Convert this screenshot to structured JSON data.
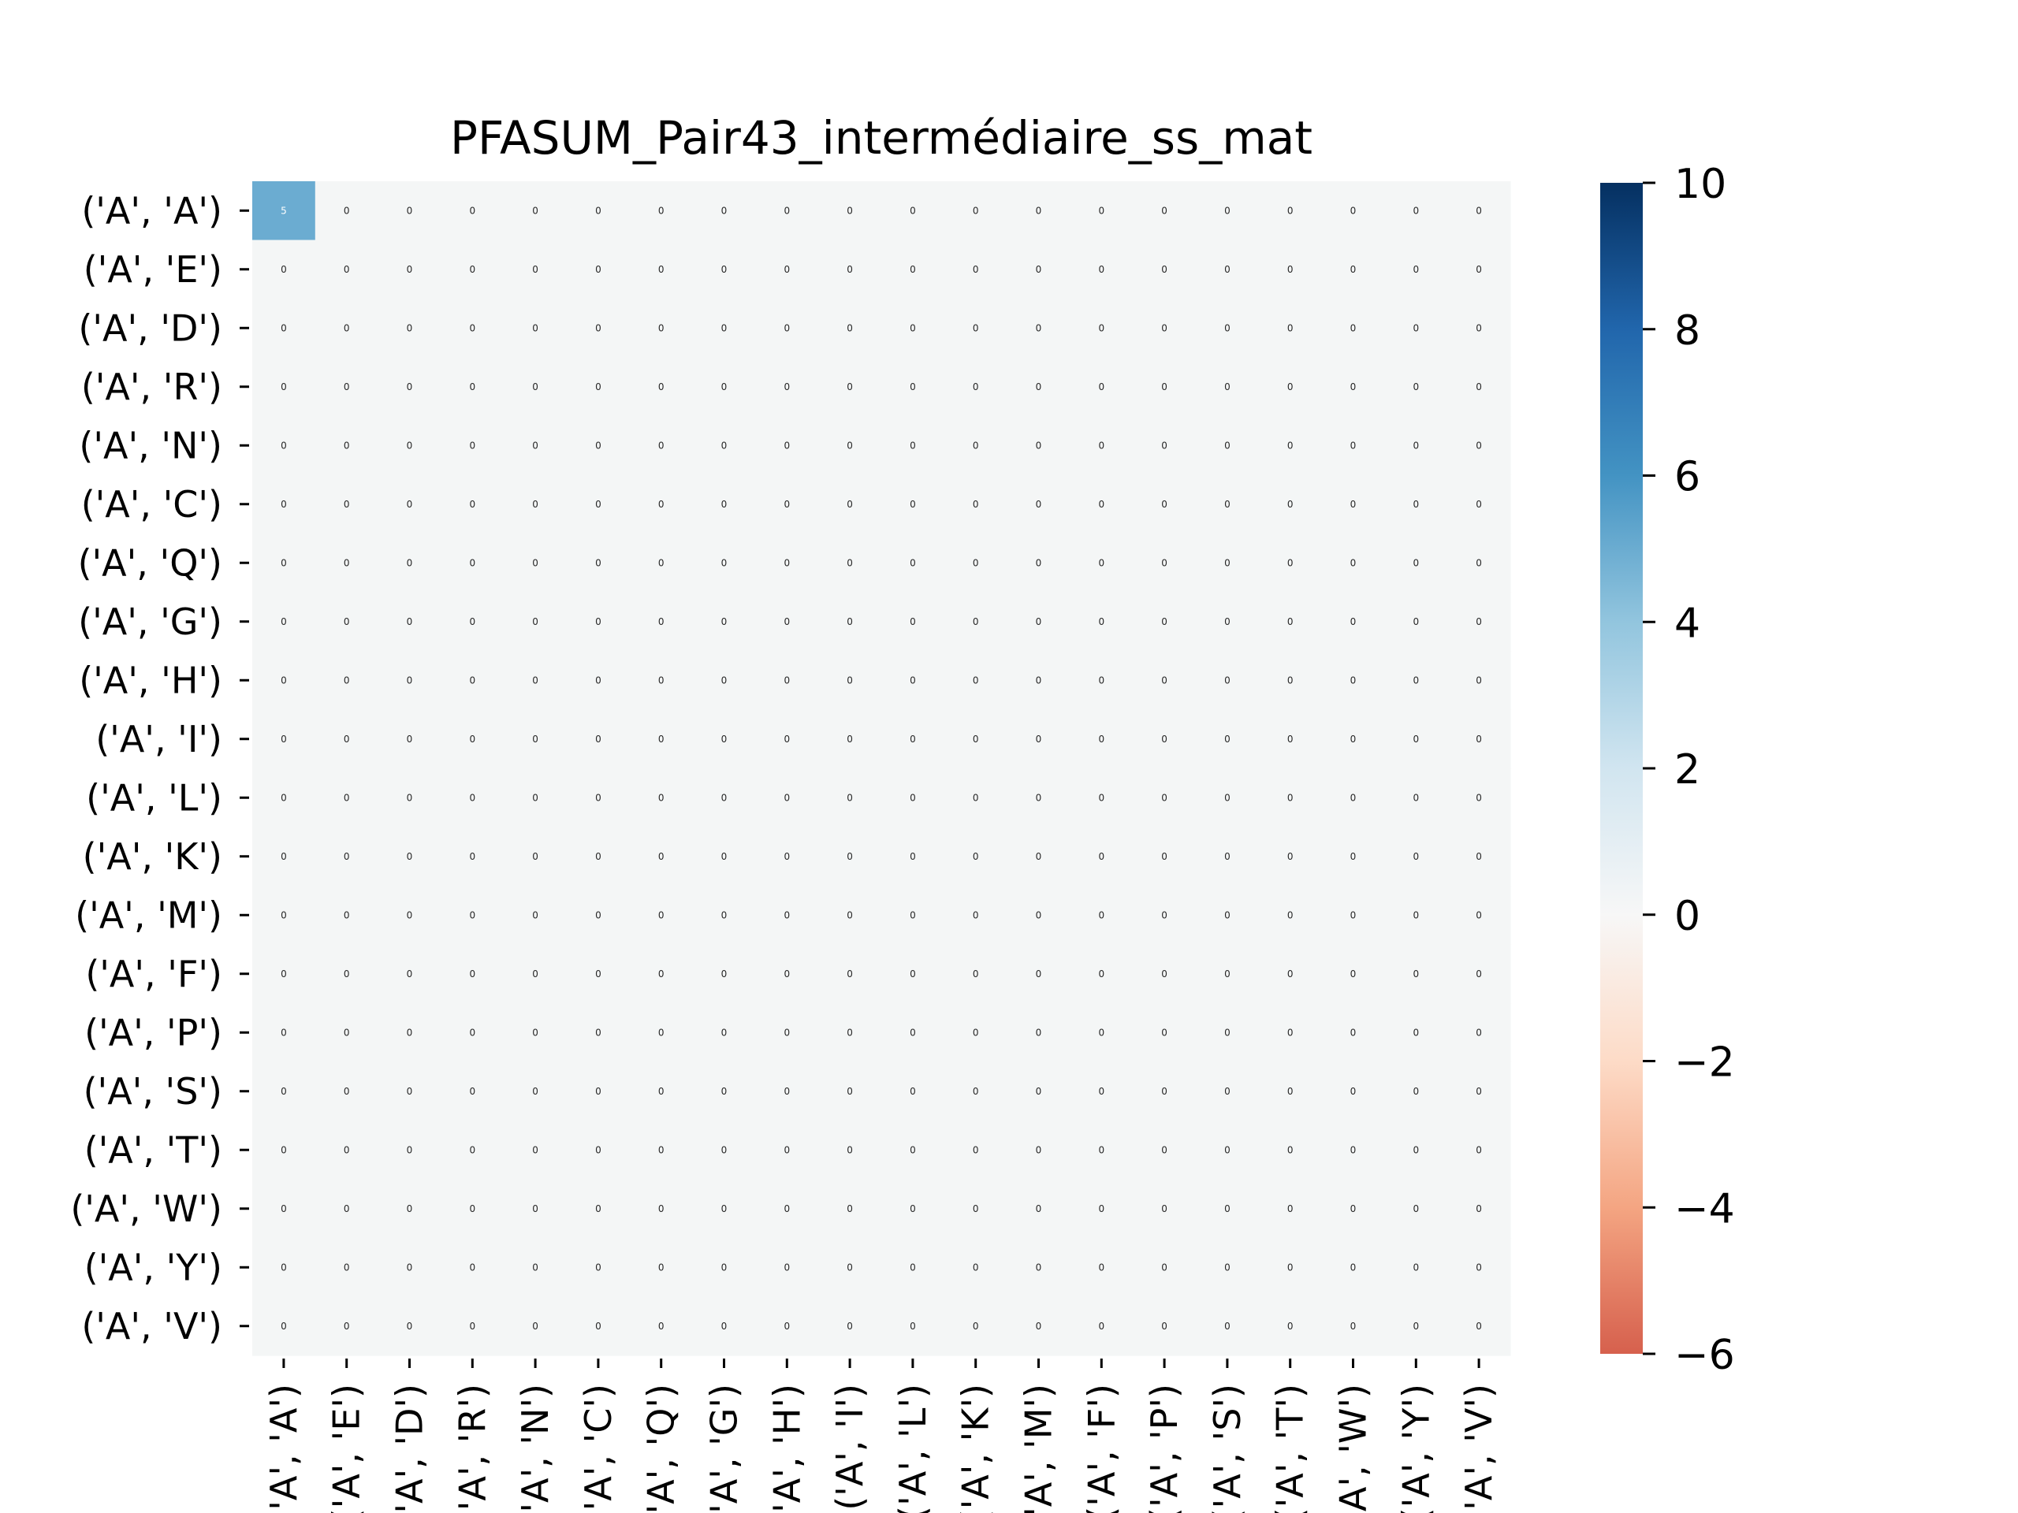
{
  "chart_data": {
    "type": "heatmap",
    "title": "PFASUM_Pair43_intermédiaire_ss_mat",
    "row_labels": [
      "('A', 'A')",
      "('A', 'E')",
      "('A', 'D')",
      "('A', 'R')",
      "('A', 'N')",
      "('A', 'C')",
      "('A', 'Q')",
      "('A', 'G')",
      "('A', 'H')",
      "('A', 'I')",
      "('A', 'L')",
      "('A', 'K')",
      "('A', 'M')",
      "('A', 'F')",
      "('A', 'P')",
      "('A', 'S')",
      "('A', 'T')",
      "('A', 'W')",
      "('A', 'Y')",
      "('A', 'V')"
    ],
    "col_labels": [
      "('A', 'A')",
      "('A', 'E')",
      "('A', 'D')",
      "('A', 'R')",
      "('A', 'N')",
      "('A', 'C')",
      "('A', 'Q')",
      "('A', 'G')",
      "('A', 'H')",
      "('A', 'I')",
      "('A', 'L')",
      "('A', 'K')",
      "('A', 'M')",
      "('A', 'F')",
      "('A', 'P')",
      "('A', 'S')",
      "('A', 'T')",
      "('A', 'W')",
      "('A', 'Y')",
      "('A', 'V')"
    ],
    "values": [
      [
        5,
        0,
        0,
        0,
        0,
        0,
        0,
        0,
        0,
        0,
        0,
        0,
        0,
        0,
        0,
        0,
        0,
        0,
        0,
        0
      ],
      [
        0,
        0,
        0,
        0,
        0,
        0,
        0,
        0,
        0,
        0,
        0,
        0,
        0,
        0,
        0,
        0,
        0,
        0,
        0,
        0
      ],
      [
        0,
        0,
        0,
        0,
        0,
        0,
        0,
        0,
        0,
        0,
        0,
        0,
        0,
        0,
        0,
        0,
        0,
        0,
        0,
        0
      ],
      [
        0,
        0,
        0,
        0,
        0,
        0,
        0,
        0,
        0,
        0,
        0,
        0,
        0,
        0,
        0,
        0,
        0,
        0,
        0,
        0
      ],
      [
        0,
        0,
        0,
        0,
        0,
        0,
        0,
        0,
        0,
        0,
        0,
        0,
        0,
        0,
        0,
        0,
        0,
        0,
        0,
        0
      ],
      [
        0,
        0,
        0,
        0,
        0,
        0,
        0,
        0,
        0,
        0,
        0,
        0,
        0,
        0,
        0,
        0,
        0,
        0,
        0,
        0
      ],
      [
        0,
        0,
        0,
        0,
        0,
        0,
        0,
        0,
        0,
        0,
        0,
        0,
        0,
        0,
        0,
        0,
        0,
        0,
        0,
        0
      ],
      [
        0,
        0,
        0,
        0,
        0,
        0,
        0,
        0,
        0,
        0,
        0,
        0,
        0,
        0,
        0,
        0,
        0,
        0,
        0,
        0
      ],
      [
        0,
        0,
        0,
        0,
        0,
        0,
        0,
        0,
        0,
        0,
        0,
        0,
        0,
        0,
        0,
        0,
        0,
        0,
        0,
        0
      ],
      [
        0,
        0,
        0,
        0,
        0,
        0,
        0,
        0,
        0,
        0,
        0,
        0,
        0,
        0,
        0,
        0,
        0,
        0,
        0,
        0
      ],
      [
        0,
        0,
        0,
        0,
        0,
        0,
        0,
        0,
        0,
        0,
        0,
        0,
        0,
        0,
        0,
        0,
        0,
        0,
        0,
        0
      ],
      [
        0,
        0,
        0,
        0,
        0,
        0,
        0,
        0,
        0,
        0,
        0,
        0,
        0,
        0,
        0,
        0,
        0,
        0,
        0,
        0
      ],
      [
        0,
        0,
        0,
        0,
        0,
        0,
        0,
        0,
        0,
        0,
        0,
        0,
        0,
        0,
        0,
        0,
        0,
        0,
        0,
        0
      ],
      [
        0,
        0,
        0,
        0,
        0,
        0,
        0,
        0,
        0,
        0,
        0,
        0,
        0,
        0,
        0,
        0,
        0,
        0,
        0,
        0
      ],
      [
        0,
        0,
        0,
        0,
        0,
        0,
        0,
        0,
        0,
        0,
        0,
        0,
        0,
        0,
        0,
        0,
        0,
        0,
        0,
        0
      ],
      [
        0,
        0,
        0,
        0,
        0,
        0,
        0,
        0,
        0,
        0,
        0,
        0,
        0,
        0,
        0,
        0,
        0,
        0,
        0,
        0
      ],
      [
        0,
        0,
        0,
        0,
        0,
        0,
        0,
        0,
        0,
        0,
        0,
        0,
        0,
        0,
        0,
        0,
        0,
        0,
        0,
        0
      ],
      [
        0,
        0,
        0,
        0,
        0,
        0,
        0,
        0,
        0,
        0,
        0,
        0,
        0,
        0,
        0,
        0,
        0,
        0,
        0,
        0
      ],
      [
        0,
        0,
        0,
        0,
        0,
        0,
        0,
        0,
        0,
        0,
        0,
        0,
        0,
        0,
        0,
        0,
        0,
        0,
        0,
        0
      ],
      [
        0,
        0,
        0,
        0,
        0,
        0,
        0,
        0,
        0,
        0,
        0,
        0,
        0,
        0,
        0,
        0,
        0,
        0,
        0,
        0
      ]
    ],
    "annotate": true,
    "colorbar": {
      "range": [
        -6,
        10
      ],
      "ticks": [
        -6,
        -4,
        -2,
        0,
        2,
        4,
        6,
        8,
        10
      ],
      "tick_labels": [
        "−6",
        "−4",
        "−2",
        "0",
        "2",
        "4",
        "6",
        "8",
        "10"
      ],
      "colormap": "RdBu",
      "center": 0
    },
    "colors": {
      "cmap_stops": [
        "#d6604d",
        "#f4a582",
        "#fddbc7",
        "#f7f7f7",
        "#d1e5f0",
        "#92c5de",
        "#4393c3",
        "#2166ac",
        "#053061"
      ],
      "zero_cell": "#f4f6f6",
      "text_on_light": "#262626",
      "text_on_dark": "#ffffff"
    },
    "grid": false,
    "legend": "colorbar-right"
  }
}
